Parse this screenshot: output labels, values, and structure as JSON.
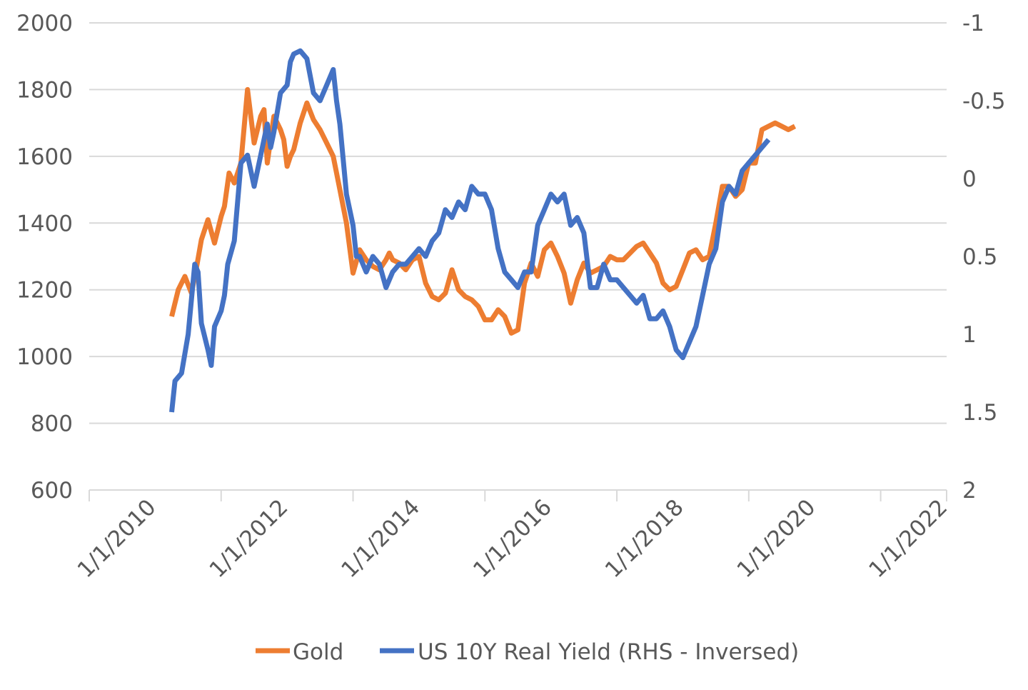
{
  "chart_data": {
    "type": "line",
    "title": "",
    "xlabel": "",
    "ylabel": "",
    "y2label": "",
    "grid": true,
    "legend_position": "bottom",
    "x_ticks": [
      "1/1/2010",
      "1/1/2012",
      "1/1/2014",
      "1/1/2016",
      "1/1/2018",
      "1/1/2020",
      "1/1/2022"
    ],
    "x_range": [
      2010.0,
      2023.0
    ],
    "y_left": {
      "range": [
        600,
        2000
      ],
      "ticks": [
        "600",
        "800",
        "1000",
        "1200",
        "1400",
        "1600",
        "1800",
        "2000"
      ]
    },
    "y_right": {
      "range": [
        -1,
        2
      ],
      "inverted": true,
      "ticks": [
        "-1",
        "-0.5",
        "0",
        "0.5",
        "1",
        "1.5",
        "2"
      ]
    },
    "series": [
      {
        "name": "Gold",
        "axis": "left",
        "color": "#ED7D31",
        "x": [
          2011.25,
          2011.35,
          2011.45,
          2011.55,
          2011.62,
          2011.7,
          2011.8,
          2011.9,
          2012.0,
          2012.05,
          2012.12,
          2012.2,
          2012.3,
          2012.4,
          2012.5,
          2012.6,
          2012.65,
          2012.7,
          2012.8,
          2012.85,
          2012.9,
          2012.95,
          2013.0,
          2013.05,
          2013.1,
          2013.2,
          2013.3,
          2013.4,
          2013.5,
          2013.6,
          2013.7,
          2013.8,
          2013.9,
          2014.0,
          2014.1,
          2014.2,
          2014.3,
          2014.4,
          2014.5,
          2014.55,
          2014.6,
          2014.7,
          2014.8,
          2014.9,
          2015.0,
          2015.1,
          2015.2,
          2015.3,
          2015.4,
          2015.5,
          2015.6,
          2015.7,
          2015.8,
          2015.9,
          2016.0,
          2016.1,
          2016.2,
          2016.3,
          2016.4,
          2016.5,
          2016.6,
          2016.7,
          2016.8,
          2016.9,
          2017.0,
          2017.1,
          2017.2,
          2017.3,
          2017.4,
          2017.5,
          2017.6,
          2017.7,
          2017.8,
          2017.9,
          2018.0,
          2018.1,
          2018.2,
          2018.3,
          2018.4,
          2018.5,
          2018.6,
          2018.7,
          2018.8,
          2018.9,
          2019.0,
          2019.1,
          2019.2,
          2019.3,
          2019.4,
          2019.5,
          2019.6,
          2019.7,
          2019.8,
          2019.9,
          2020.0,
          2020.1,
          2020.2,
          2020.3,
          2020.4,
          2020.5,
          2020.6,
          2020.7
        ],
        "values": [
          1120,
          1200,
          1240,
          1190,
          1260,
          1350,
          1410,
          1340,
          1420,
          1450,
          1550,
          1520,
          1580,
          1800,
          1640,
          1720,
          1740,
          1580,
          1720,
          1700,
          1680,
          1650,
          1570,
          1600,
          1620,
          1700,
          1760,
          1710,
          1680,
          1640,
          1600,
          1500,
          1400,
          1250,
          1320,
          1290,
          1270,
          1260,
          1290,
          1310,
          1290,
          1280,
          1260,
          1290,
          1300,
          1220,
          1180,
          1170,
          1190,
          1260,
          1200,
          1180,
          1170,
          1150,
          1110,
          1110,
          1140,
          1120,
          1070,
          1080,
          1220,
          1280,
          1240,
          1320,
          1340,
          1300,
          1250,
          1160,
          1230,
          1280,
          1250,
          1260,
          1270,
          1300,
          1290,
          1290,
          1310,
          1330,
          1340,
          1310,
          1280,
          1220,
          1200,
          1210,
          1260,
          1310,
          1320,
          1290,
          1300,
          1400,
          1510,
          1510,
          1480,
          1500,
          1580,
          1580,
          1680,
          1690,
          1700,
          1690,
          1680,
          1690
        ],
        "x_end": 2020.45
      },
      {
        "name": "US 10Y Real Yield (RHS - Inversed)",
        "axis": "right",
        "color": "#4472C4",
        "x": [
          2011.25,
          2011.3,
          2011.4,
          2011.5,
          2011.6,
          2011.65,
          2011.7,
          2011.8,
          2011.85,
          2011.9,
          2012.0,
          2012.05,
          2012.1,
          2012.2,
          2012.3,
          2012.4,
          2012.5,
          2012.55,
          2012.6,
          2012.7,
          2012.75,
          2012.8,
          2012.9,
          2013.0,
          2013.05,
          2013.1,
          2013.2,
          2013.3,
          2013.4,
          2013.5,
          2013.6,
          2013.7,
          2013.75,
          2013.8,
          2013.9,
          2014.0,
          2014.05,
          2014.1,
          2014.2,
          2014.3,
          2014.4,
          2014.5,
          2014.6,
          2014.7,
          2014.8,
          2014.9,
          2015.0,
          2015.1,
          2015.2,
          2015.3,
          2015.4,
          2015.5,
          2015.6,
          2015.7,
          2015.8,
          2015.9,
          2016.0,
          2016.1,
          2016.2,
          2016.3,
          2016.4,
          2016.5,
          2016.6,
          2016.7,
          2016.8,
          2016.9,
          2017.0,
          2017.1,
          2017.2,
          2017.3,
          2017.4,
          2017.5,
          2017.6,
          2017.7,
          2017.8,
          2017.9,
          2018.0,
          2018.1,
          2018.2,
          2018.3,
          2018.4,
          2018.5,
          2018.6,
          2018.7,
          2018.8,
          2018.9,
          2019.0,
          2019.1,
          2019.2,
          2019.3,
          2019.4,
          2019.5,
          2019.6,
          2019.7,
          2019.8,
          2019.9,
          2020.0,
          2020.1,
          2020.2,
          2020.3
        ],
        "values": [
          1.5,
          1.3,
          1.25,
          1.0,
          0.55,
          0.6,
          0.93,
          1.1,
          1.2,
          0.95,
          0.85,
          0.75,
          0.55,
          0.4,
          -0.1,
          -0.15,
          0.05,
          -0.05,
          -0.15,
          -0.35,
          -0.2,
          -0.3,
          -0.55,
          -0.6,
          -0.75,
          -0.8,
          -0.82,
          -0.77,
          -0.55,
          -0.5,
          -0.6,
          -0.7,
          -0.5,
          -0.35,
          0.1,
          0.3,
          0.5,
          0.5,
          0.6,
          0.5,
          0.55,
          0.7,
          0.6,
          0.55,
          0.55,
          0.5,
          0.45,
          0.5,
          0.4,
          0.35,
          0.2,
          0.25,
          0.15,
          0.2,
          0.05,
          0.1,
          0.1,
          0.2,
          0.45,
          0.6,
          0.65,
          0.7,
          0.6,
          0.6,
          0.3,
          0.2,
          0.1,
          0.15,
          0.1,
          0.3,
          0.25,
          0.35,
          0.7,
          0.7,
          0.55,
          0.65,
          0.65,
          0.7,
          0.75,
          0.8,
          0.75,
          0.9,
          0.9,
          0.85,
          0.95,
          1.1,
          1.15,
          1.05,
          0.95,
          0.75,
          0.55,
          0.45,
          0.15,
          0.05,
          0.1,
          -0.05,
          -0.1,
          -0.15,
          -0.2,
          -0.25
        ],
        "x_end": 2020.5
      }
    ]
  }
}
